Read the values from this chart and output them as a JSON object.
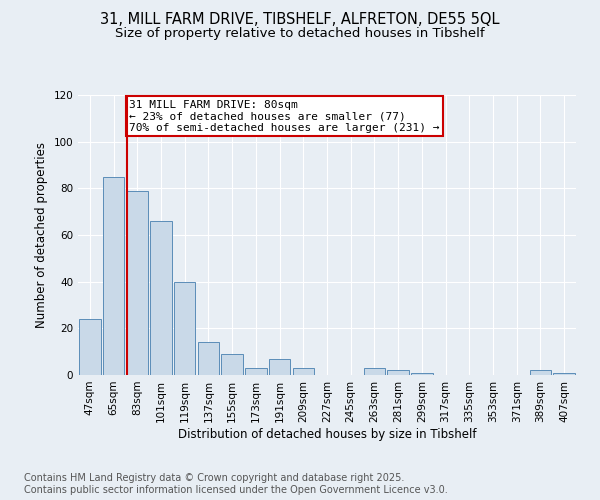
{
  "title_line1": "31, MILL FARM DRIVE, TIBSHELF, ALFRETON, DE55 5QL",
  "title_line2": "Size of property relative to detached houses in Tibshelf",
  "xlabel": "Distribution of detached houses by size in Tibshelf",
  "ylabel": "Number of detached properties",
  "bar_labels": [
    "47sqm",
    "65sqm",
    "83sqm",
    "101sqm",
    "119sqm",
    "137sqm",
    "155sqm",
    "173sqm",
    "191sqm",
    "209sqm",
    "227sqm",
    "245sqm",
    "263sqm",
    "281sqm",
    "299sqm",
    "317sqm",
    "335sqm",
    "353sqm",
    "371sqm",
    "389sqm",
    "407sqm"
  ],
  "bar_values": [
    24,
    85,
    79,
    66,
    40,
    14,
    9,
    3,
    7,
    3,
    0,
    0,
    3,
    2,
    1,
    0,
    0,
    0,
    0,
    2,
    1
  ],
  "bar_color": "#c9d9e8",
  "bar_edge_color": "#5b8db8",
  "annotation_line1": "31 MILL FARM DRIVE: 80sqm",
  "annotation_line2": "← 23% of detached houses are smaller (77)",
  "annotation_line3": "70% of semi-detached houses are larger (231) →",
  "property_line_x": 2,
  "red_line_color": "#cc0000",
  "annotation_box_color": "#ffffff",
  "annotation_box_edge_color": "#cc0000",
  "ylim": [
    0,
    120
  ],
  "yticks": [
    0,
    20,
    40,
    60,
    80,
    100,
    120
  ],
  "background_color": "#e8eef4",
  "plot_background_color": "#e8eef4",
  "grid_color": "#ffffff",
  "footer_text": "Contains HM Land Registry data © Crown copyright and database right 2025.\nContains public sector information licensed under the Open Government Licence v3.0.",
  "title_fontsize": 10.5,
  "subtitle_fontsize": 9.5,
  "tick_fontsize": 7.5,
  "annotation_fontsize": 8,
  "ylabel_fontsize": 8.5,
  "xlabel_fontsize": 8.5,
  "footer_fontsize": 7
}
